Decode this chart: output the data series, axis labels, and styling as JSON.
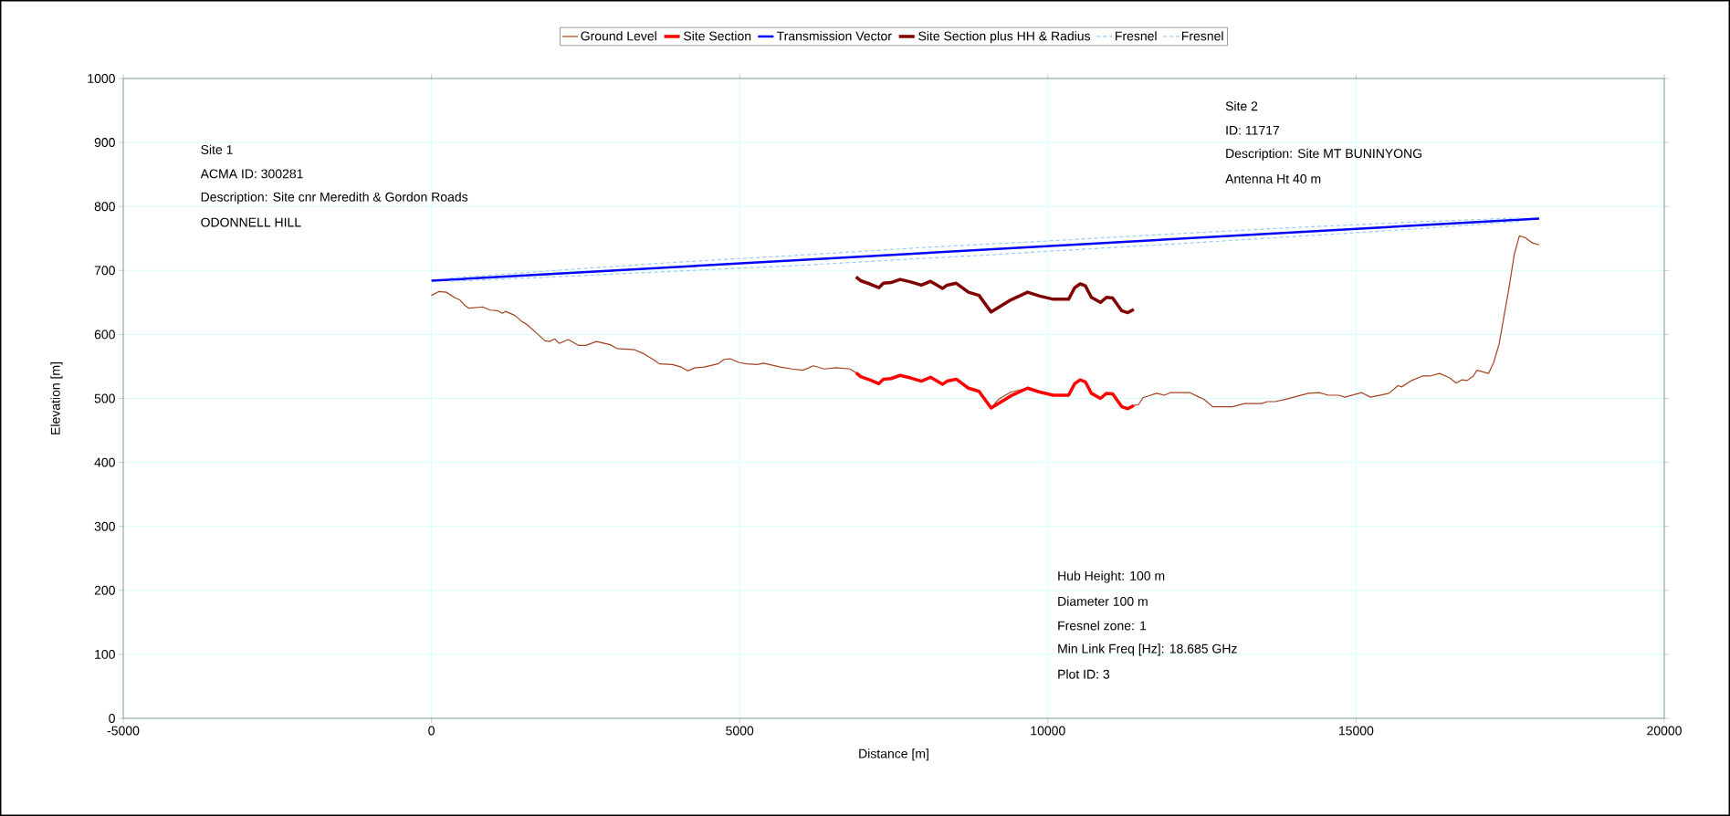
{
  "chart_data": {
    "type": "line",
    "xlabel": "Distance [m]",
    "ylabel": "Elevation [m]",
    "xlim": [
      -5000,
      20000
    ],
    "xticks": [
      -5000,
      0,
      5000,
      10000,
      15000,
      20000
    ],
    "ylim": [
      0,
      1000
    ],
    "yticks": [
      0,
      100,
      200,
      300,
      400,
      500,
      600,
      700,
      800,
      900,
      1000
    ],
    "grid": true,
    "legend": "top",
    "marker": "none",
    "annotations": [
      "Site 1",
      "ACMA ID: 300281",
      "Description: Site cnr Meredith & Gordon Roads",
      "ODONNELL HILL",
      "Site 2",
      "ID: 11717",
      "Description: Site MT BUNINYONG",
      "Antenna Ht 40 m",
      "Hub Height: 100 m",
      "Diameter 100 m",
      "Fresnel zone:  1",
      "Min Link Freq [Hz]: 18.685 GHz",
      "Plot ID: 3"
    ],
    "series": [
      {
        "name": "Ground Level",
        "color": "#a5421f",
        "x": [
          0,
          117,
          239,
          387,
          461,
          535,
          609,
          830,
          953,
          1077,
          1151,
          1200,
          1348,
          1470,
          1544,
          1742,
          1840,
          1914,
          2002,
          2072,
          2220,
          2382,
          2505,
          2677,
          2899,
          3007,
          3294,
          3441,
          3613,
          3697,
          3908,
          4056,
          4155,
          4278,
          4426,
          4647,
          4746,
          4845,
          4993,
          5116,
          5288,
          5386,
          5485,
          5658,
          5854,
          6027,
          6199,
          6371,
          6568,
          6790,
          6889,
          6962,
          7110,
          7258,
          7332,
          7455,
          7603,
          7775,
          7948,
          8096,
          8292,
          8366,
          8514,
          8711,
          8883,
          9080,
          9204,
          9400,
          9671,
          9868,
          10090,
          10336,
          10435,
          10524,
          10608,
          10706,
          10853,
          10952,
          11051,
          11199,
          11297,
          11395,
          11469,
          11543,
          11765,
          11888,
          11986,
          12306,
          12454,
          12528,
          12676,
          12996,
          13193,
          13464,
          13563,
          13686,
          13834,
          14030,
          14227,
          14400,
          14548,
          14720,
          14819,
          15089,
          15237,
          15434,
          15533,
          15681,
          15740,
          15903,
          16075,
          16198,
          16356,
          16518,
          16626,
          16715,
          16803,
          16902,
          16961,
          17148,
          17232,
          17321,
          17478,
          17567,
          17650,
          17749,
          17862,
          17971
        ],
        "values": [
          661,
          667,
          666,
          657,
          654,
          646,
          641,
          643,
          638,
          637,
          633,
          636,
          630,
          620,
          616,
          599,
          590,
          589,
          593,
          586,
          592,
          583,
          583,
          589,
          584,
          578,
          576,
          570,
          560,
          554,
          553,
          549,
          543,
          548,
          549,
          554,
          561,
          562,
          556,
          554,
          553,
          555,
          553,
          549,
          546,
          544,
          551,
          546,
          548,
          546,
          540,
          534,
          529,
          523,
          530,
          531,
          536,
          532,
          527,
          533,
          522,
          527,
          530,
          516,
          511,
          485,
          499,
          510,
          516,
          510,
          505,
          505,
          523,
          529,
          526,
          508,
          500,
          508,
          507,
          487,
          484,
          489,
          490,
          501,
          508,
          505,
          509,
          509,
          502,
          499,
          487,
          487,
          492,
          492,
          495,
          495,
          498,
          503,
          508,
          509,
          505,
          505,
          502,
          509,
          502,
          506,
          508,
          520,
          518,
          528,
          535,
          535,
          539,
          532,
          524,
          529,
          528,
          535,
          544,
          539,
          556,
          585,
          671,
          725,
          754,
          751,
          743,
          740
        ]
      },
      {
        "name": "Site Section",
        "color": "#ff0000",
        "x": [
          6889,
          6962,
          7110,
          7258,
          7332,
          7455,
          7603,
          7775,
          7948,
          8096,
          8292,
          8366,
          8514,
          8711,
          8883,
          9080,
          9400,
          9671,
          9868,
          10090,
          10336,
          10435,
          10524,
          10608,
          10706,
          10853,
          10952,
          11051,
          11199,
          11297,
          11395
        ],
        "values": [
          540,
          534,
          529,
          523,
          530,
          531,
          536,
          532,
          527,
          533,
          522,
          527,
          530,
          516,
          511,
          485,
          504,
          516,
          510,
          505,
          505,
          523,
          529,
          526,
          508,
          500,
          508,
          507,
          487,
          484,
          489
        ]
      },
      {
        "name": "Transmission Vector",
        "color": "#0000ff",
        "x": [
          0,
          17971
        ],
        "values": [
          684,
          781
        ]
      },
      {
        "name": "Site Section plus HH & Radius",
        "color": "#800000",
        "x": [
          6889,
          6962,
          7110,
          7258,
          7332,
          7455,
          7603,
          7775,
          7948,
          8096,
          8292,
          8366,
          8514,
          8711,
          8883,
          9080,
          9400,
          9671,
          9868,
          10090,
          10336,
          10435,
          10524,
          10608,
          10706,
          10853,
          10952,
          11051,
          11199,
          11297,
          11395
        ],
        "values": [
          690,
          684,
          679,
          673,
          680,
          681,
          686,
          682,
          677,
          683,
          672,
          677,
          680,
          666,
          661,
          635,
          654,
          666,
          660,
          655,
          655,
          673,
          679,
          676,
          658,
          650,
          658,
          657,
          637,
          634,
          639
        ]
      },
      {
        "name": "Fresnel",
        "color": "#99ccff",
        "line_style": "dashed",
        "x": [
          300,
          2000,
          4000,
          6000,
          8000,
          9000,
          10000,
          12000,
          14000,
          16000,
          17700
        ],
        "values": [
          688,
          700,
          713,
          724,
          736,
          741,
          746,
          757,
          767,
          776,
          782
        ]
      },
      {
        "name": "Fresnel",
        "color": "#99ccff",
        "line_style": "dashed",
        "x": [
          300,
          2000,
          4000,
          6000,
          8000,
          9000,
          10000,
          12000,
          14000,
          16000,
          17700
        ],
        "values": [
          683,
          690,
          699,
          708,
          719,
          724,
          730,
          741,
          753,
          765,
          777
        ]
      }
    ]
  }
}
